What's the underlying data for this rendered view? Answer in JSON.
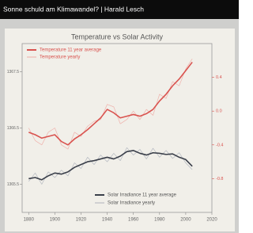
{
  "video_title": "Sonne schuld am Klimawandel? | Harald Lesch",
  "chart_data": {
    "type": "line",
    "title": "Temperature vs Solar Activity",
    "x": [
      1880,
      1885,
      1890,
      1895,
      1900,
      1905,
      1910,
      1915,
      1920,
      1925,
      1930,
      1935,
      1940,
      1945,
      1950,
      1955,
      1960,
      1965,
      1970,
      1975,
      1980,
      1985,
      1990,
      1995,
      2000,
      2005
    ],
    "series": [
      {
        "name": "Temperature 11 year average",
        "color": "#d9534f",
        "width": 1.6,
        "axis": "y2",
        "legend": "upper left",
        "values": [
          -0.25,
          -0.28,
          -0.32,
          -0.3,
          -0.28,
          -0.36,
          -0.4,
          -0.33,
          -0.28,
          -0.22,
          -0.15,
          -0.08,
          0.02,
          -0.02,
          -0.08,
          -0.06,
          -0.04,
          -0.06,
          -0.03,
          0.02,
          0.12,
          0.2,
          0.3,
          0.38,
          0.48,
          0.58
        ]
      },
      {
        "name": "Temperature yearly",
        "color": "#efb3ad",
        "width": 0.7,
        "axis": "y2",
        "legend": "upper left",
        "values": [
          -0.2,
          -0.35,
          -0.4,
          -0.25,
          -0.2,
          -0.4,
          -0.45,
          -0.25,
          -0.3,
          -0.18,
          -0.12,
          -0.1,
          0.08,
          0.05,
          -0.15,
          -0.1,
          0.0,
          -0.1,
          0.02,
          -0.05,
          0.2,
          0.15,
          0.35,
          0.3,
          0.5,
          0.62
        ]
      },
      {
        "name": "Solar Irradiance 11 year average",
        "color": "#3a3f4a",
        "width": 1.6,
        "axis": "y",
        "legend": "lower right",
        "values": [
          1365.6,
          1365.62,
          1365.58,
          1365.65,
          1365.7,
          1365.68,
          1365.72,
          1365.8,
          1365.85,
          1365.9,
          1365.92,
          1365.95,
          1365.98,
          1365.95,
          1366.0,
          1366.08,
          1366.1,
          1366.05,
          1366.02,
          1366.06,
          1366.05,
          1366.03,
          1366.04,
          1365.98,
          1365.94,
          1365.82
        ]
      },
      {
        "name": "Solar Irradiance yearly",
        "color": "#b4b8c0",
        "width": 0.7,
        "axis": "y",
        "legend": "lower right",
        "values": [
          1365.55,
          1365.7,
          1365.5,
          1365.72,
          1365.62,
          1365.75,
          1365.65,
          1365.88,
          1365.78,
          1365.98,
          1365.85,
          1366.02,
          1365.9,
          1366.05,
          1365.92,
          1366.15,
          1366.02,
          1366.12,
          1365.95,
          1366.14,
          1365.98,
          1366.1,
          1365.96,
          1366.06,
          1365.88,
          1365.76
        ]
      }
    ],
    "xlim": [
      1875,
      2020
    ],
    "xticks": [
      1880,
      1900,
      1920,
      1940,
      1960,
      1980,
      2000,
      2020
    ],
    "ylim": [
      1365.0,
      1368.0
    ],
    "yticks": [
      1365.5,
      1366.5,
      1367.5
    ],
    "y2lim": [
      -1.2,
      0.8
    ],
    "y2ticks": [
      -0.8,
      -0.4,
      {
        "value": 0,
        "label": "0.0"
      },
      0.4
    ],
    "y2color": "#d9534f"
  }
}
